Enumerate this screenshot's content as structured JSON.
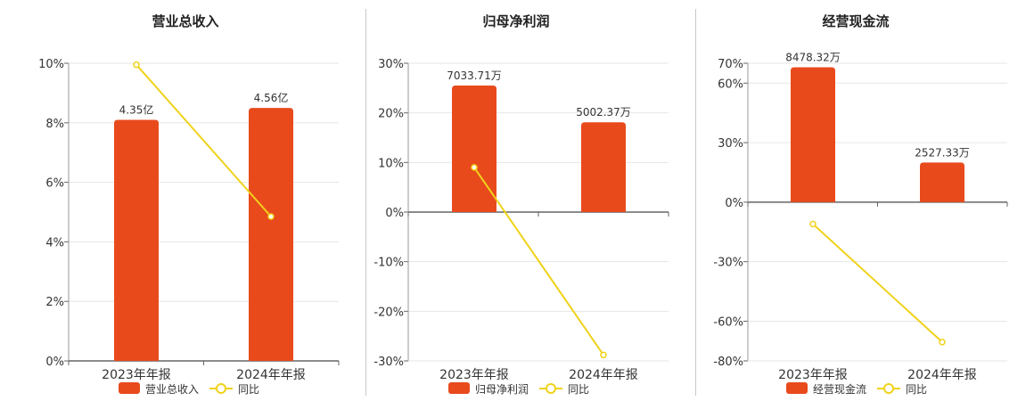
{
  "colors": {
    "bar": "#E84A1C",
    "line": "#F0D21A",
    "grid": "#e6e6e6",
    "axis": "#666666",
    "text": "#333333"
  },
  "chart_data": [
    {
      "type": "bar",
      "title": "营业总收入",
      "categories": [
        "2023年年报",
        "2024年年报"
      ],
      "ylim": [
        0,
        10
      ],
      "yticks": [
        0,
        2,
        4,
        6,
        8,
        10
      ],
      "ytick_labels": [
        "0%",
        "2%",
        "4%",
        "6%",
        "8%",
        "10%"
      ],
      "series": [
        {
          "name": "营业总收入",
          "kind": "bar",
          "values": [
            8.1,
            8.5
          ],
          "labels": [
            "4.35亿",
            "4.56亿"
          ]
        },
        {
          "name": "同比",
          "kind": "line",
          "values": [
            9.95,
            4.85
          ]
        }
      ],
      "grid": true,
      "legend": "bottom"
    },
    {
      "type": "bar",
      "title": "归母净利润",
      "categories": [
        "2023年年报",
        "2024年年报"
      ],
      "ylim": [
        -30,
        30
      ],
      "yticks": [
        -30,
        -20,
        -10,
        0,
        10,
        20,
        30
      ],
      "ytick_labels": [
        "-30%",
        "-20%",
        "-10%",
        "0%",
        "10%",
        "20%",
        "30%"
      ],
      "series": [
        {
          "name": "归母净利润",
          "kind": "bar",
          "values": [
            25.5,
            18.1
          ],
          "labels": [
            "7033.71万",
            "5002.37万"
          ]
        },
        {
          "name": "同比",
          "kind": "line",
          "values": [
            9.0,
            -28.8
          ]
        }
      ],
      "grid": true,
      "legend": "bottom"
    },
    {
      "type": "bar",
      "title": "经营现金流",
      "categories": [
        "2023年年报",
        "2024年年报"
      ],
      "ylim": [
        -80,
        70
      ],
      "yticks": [
        -80,
        -60,
        -30,
        0,
        30,
        60,
        70
      ],
      "ytick_labels": [
        "-80%",
        "-60%",
        "-30%",
        "0%",
        "30%",
        "60%",
        "70%"
      ],
      "series": [
        {
          "name": "经营现金流",
          "kind": "bar",
          "values": [
            68,
            20
          ],
          "labels": [
            "8478.32万",
            "2527.33万"
          ]
        },
        {
          "name": "同比",
          "kind": "line",
          "values": [
            -11,
            -70.5
          ]
        }
      ],
      "grid": true,
      "legend": "bottom"
    }
  ]
}
